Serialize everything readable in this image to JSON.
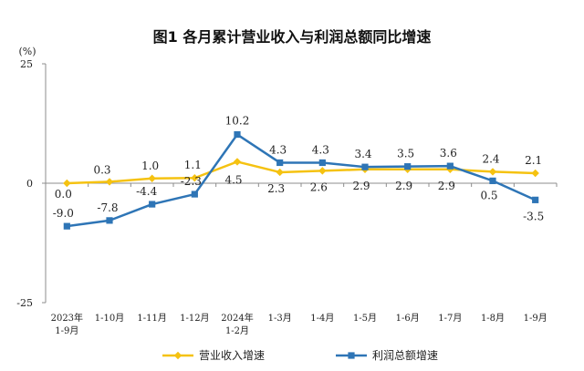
{
  "chart_data": {
    "type": "line",
    "title": "图1  各月累计营业收入与利润总额同比增速",
    "unit_label": "(%)",
    "ylim": [
      -25,
      25
    ],
    "yticks": [
      25,
      0,
      -25
    ],
    "legend_position": "bottom",
    "categories": [
      [
        "2023年",
        "1-9月"
      ],
      [
        "1-10月"
      ],
      [
        "1-11月"
      ],
      [
        "1-12月"
      ],
      [
        "2024年",
        "1-2月"
      ],
      [
        "1-3月"
      ],
      [
        "1-4月"
      ],
      [
        "1-5月"
      ],
      [
        "1-6月"
      ],
      [
        "1-7月"
      ],
      [
        "1-8月"
      ],
      [
        "1-9月"
      ]
    ],
    "series": [
      {
        "name": "营业收入增速",
        "color": "#F5C211",
        "marker": "diamond",
        "values": [
          0.0,
          0.3,
          1.0,
          1.1,
          4.5,
          2.3,
          2.6,
          2.9,
          2.9,
          2.9,
          2.4,
          2.1
        ],
        "labels": [
          "0.0",
          "0.3",
          "1.0",
          "1.1",
          "4.5",
          "2.3",
          "2.6",
          "2.9",
          "2.9",
          "2.9",
          "2.4",
          "2.1"
        ]
      },
      {
        "name": "利润总额增速",
        "color": "#2E75B6",
        "marker": "square",
        "values": [
          -9.0,
          -7.8,
          -4.4,
          -2.3,
          10.2,
          4.3,
          4.3,
          3.4,
          3.5,
          3.6,
          0.5,
          -3.5
        ],
        "labels": [
          "-9.0",
          "-7.8",
          "-4.4",
          "-2.3",
          "10.2",
          "4.3",
          "4.3",
          "3.4",
          "3.5",
          "3.6",
          "0.5",
          "-3.5"
        ]
      }
    ]
  }
}
